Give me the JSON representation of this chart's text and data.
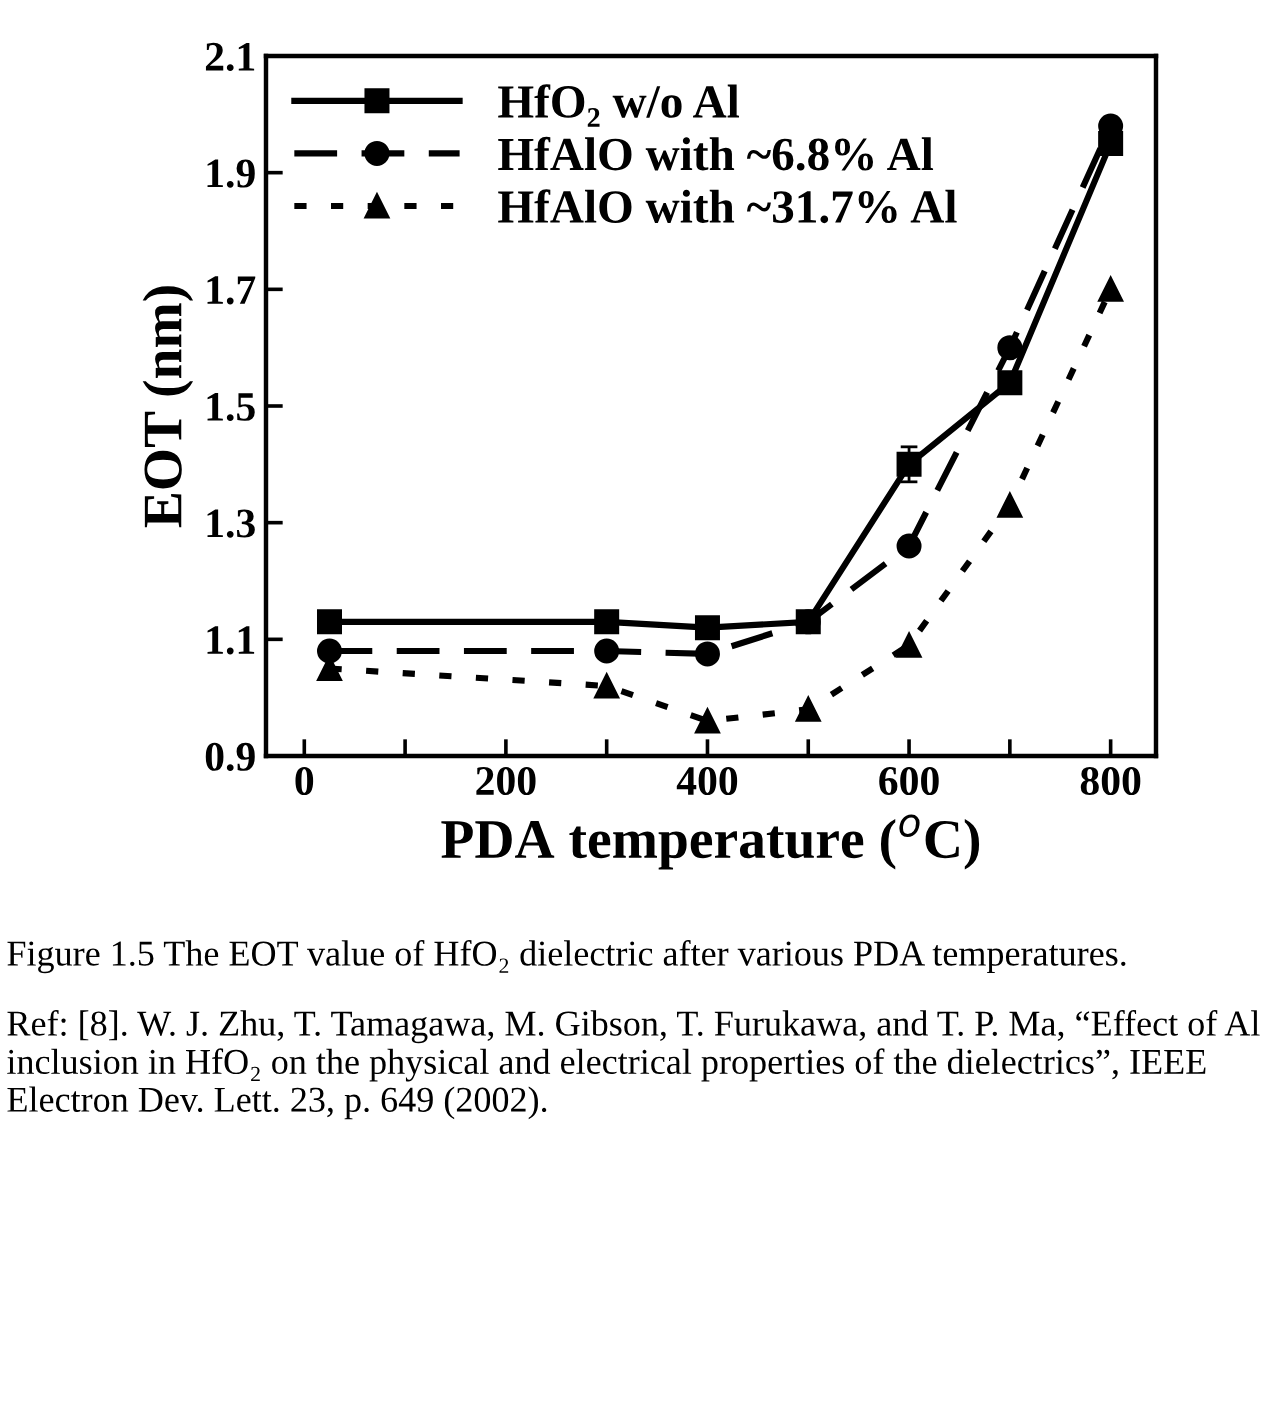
{
  "chart_data": {
    "type": "line",
    "xlabel": "PDA temperature ($^{o}$C)",
    "ylabel": "EOT (nm)",
    "x": [
      25,
      300,
      400,
      500,
      600,
      700,
      800
    ],
    "series": [
      {
        "name": "HfO₂ w/o Al",
        "color": "#000000",
        "line_style": "solid",
        "marker": "square",
        "values": [
          1.13,
          1.13,
          1.12,
          1.13,
          1.4,
          1.54,
          1.95
        ],
        "errors": [
          null,
          null,
          null,
          null,
          0.03,
          null,
          null
        ]
      },
      {
        "name": "HfAlO with ~6.8% Al",
        "color": "#000000",
        "line_style": "dashed",
        "marker": "circle",
        "values": [
          1.08,
          1.08,
          1.075,
          1.13,
          1.26,
          1.6,
          1.98
        ]
      },
      {
        "name": "HfAlO with ~31.7% Al",
        "color": "#000000",
        "line_style": "dotted",
        "marker": "triangle",
        "values": [
          1.05,
          1.02,
          0.96,
          0.98,
          1.09,
          1.33,
          1.7
        ]
      }
    ],
    "xlim": [
      -38,
      845
    ],
    "ylim": [
      0.9,
      2.1
    ],
    "xticks": [
      0,
      {
        "value": 100,
        "label": null
      },
      200,
      {
        "value": 300,
        "label": null
      },
      400,
      {
        "value": 500,
        "label": null
      },
      600,
      {
        "value": 700,
        "label": null
      },
      800
    ],
    "yticks": [
      0.9,
      1.1,
      1.3,
      1.5,
      1.7,
      1.9,
      2.1
    ],
    "grid": false,
    "legend": "top left",
    "annotations": [
      "Figure 1.5 The EOT value of HfO₂ dielectric after various PDA temperatures.",
      "Ref: [8]. W. J. Zhu, T. Tamagawa, M. Gibson, T. Furukawa, and T. P. Ma, “Effect of Al inclusion in HfO₂ on the physical and electrical properties of the dielectrics”, IEEE Electron Dev. Lett. 23, p. 649 (2002)."
    ]
  }
}
